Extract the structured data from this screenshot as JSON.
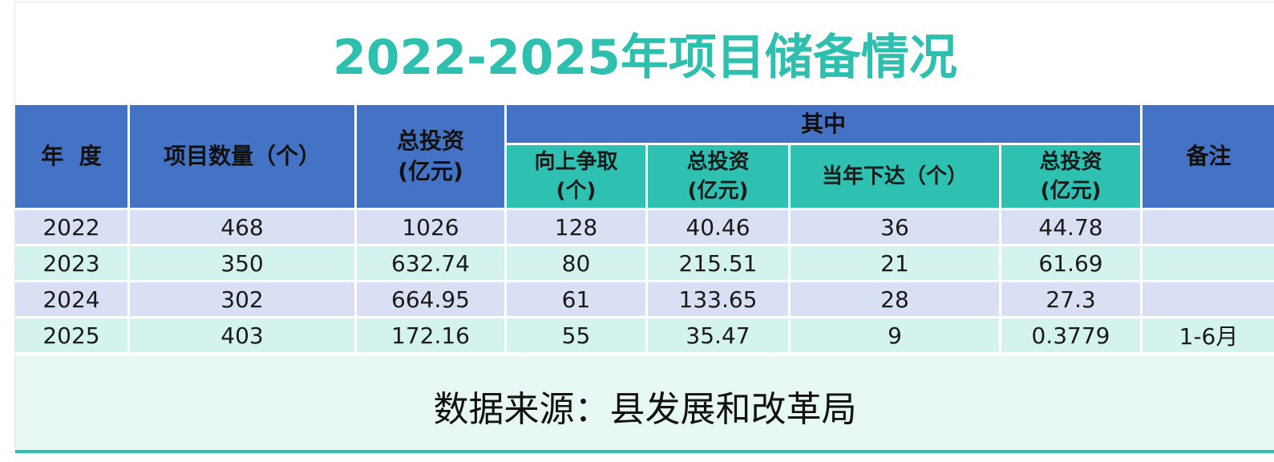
{
  "title": "2022-2025年项目储备情况",
  "header": {
    "year": "年  度",
    "count": "项目数量（个）",
    "total_invest_line1": "总投资",
    "total_invest_line2": "(亿元)",
    "group": "其中",
    "sub_upward_line1": "向上争取",
    "sub_upward_line2": "(个)",
    "sub_invest1_line1": "总投资",
    "sub_invest1_line2": "(亿元)",
    "sub_issued": "当年下达（个）",
    "sub_invest2_line1": "总投资",
    "sub_invest2_line2": "(亿元)",
    "remark": "备注"
  },
  "rows": [
    {
      "year": "2022",
      "count": "468",
      "total": "1026",
      "upward": "128",
      "invest1": "40.46",
      "issued": "36",
      "invest2": "44.78",
      "remark": ""
    },
    {
      "year": "2023",
      "count": "350",
      "total": "632.74",
      "upward": "80",
      "invest1": "215.51",
      "issued": "21",
      "invest2": "61.69",
      "remark": ""
    },
    {
      "year": "2024",
      "count": "302",
      "total": "664.95",
      "upward": "61",
      "invest1": "133.65",
      "issued": "28",
      "invest2": "27.3",
      "remark": ""
    },
    {
      "year": "2025",
      "count": "403",
      "total": "172.16",
      "upward": "55",
      "invest1": "35.47",
      "issued": "9",
      "invest2": "0.3779",
      "remark": "1-6月"
    }
  ],
  "source": "数据来源：县发展和改革局",
  "colors": {
    "title": "#2fbfaf",
    "header_blue": "#4472c4",
    "header_teal": "#2ec0b0",
    "row_blue": "#d9e0f3",
    "row_teal": "#d4f3ef"
  }
}
